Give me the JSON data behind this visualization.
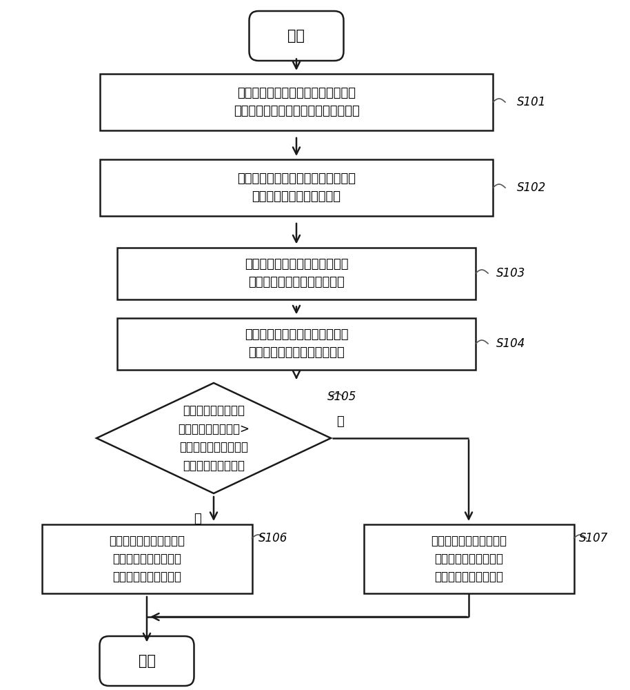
{
  "bg_color": "#ffffff",
  "box_edge_color": "#1a1a1a",
  "arrow_color": "#1a1a1a",
  "text_color": "#000000",
  "label_color": "#000000",
  "start_text": "开始",
  "end_text": "结束",
  "s101_text": "电动机温度取得部取得主轴电动机的\n线圈温度，并作为电动机温度进行输出",
  "s102_text": "逆变器温度取得部取得逆变器温度，\n并作为逆变器温度进行输出",
  "s103_text": "电动机温度比较部将电动机温度\n和电动机的过热温度进行比较",
  "s104_text": "逆变器温度比较部将逆变器温度\n和逆变器的过热温度进行比较",
  "s105_text": "电动机温度与电动机\n的过热温度之间的差>\n逆变器温度与逆变器的\n过热温度之间的差？",
  "s106_text": "根据电动机温度与电动机\n的过热温度之间的差，\n限制主轴电动机的输出",
  "s107_text": "根据逆变器温度和逆变器\n的过热温度之间的差，\n限制主轴电动机的输出",
  "yes_text": "是",
  "no_text": "否",
  "s101_label": "S101",
  "s102_label": "S102",
  "s103_label": "S103",
  "s104_label": "S104",
  "s105_label": "S105",
  "s106_label": "S106",
  "s107_label": "S107"
}
